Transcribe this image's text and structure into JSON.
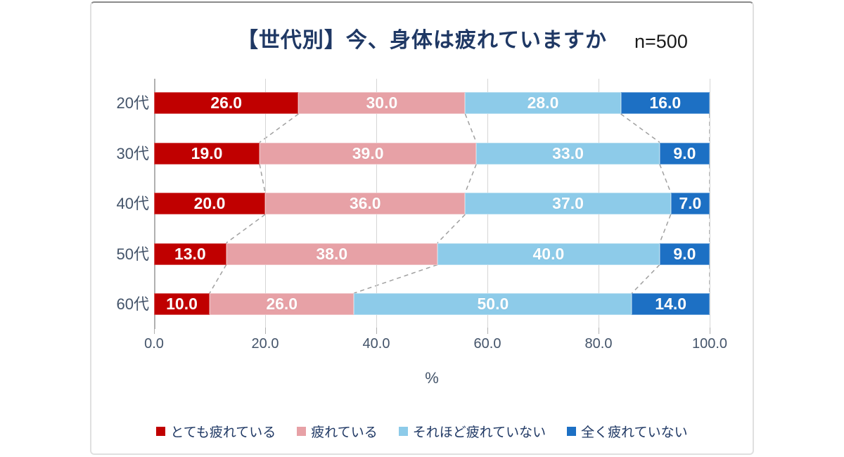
{
  "card": {
    "n_label": "n=500"
  },
  "chart_data": {
    "type": "bar",
    "subtype": "horizontal_stacked",
    "title": "【世代別】今、身体は疲れていますか",
    "sample_size": "n=500",
    "categories": [
      "20代",
      "30代",
      "40代",
      "50代",
      "60代"
    ],
    "series": [
      {
        "name": "とても疲れている",
        "color": "#c00000",
        "values": [
          26.0,
          19.0,
          20.0,
          13.0,
          10.0
        ]
      },
      {
        "name": "疲れている",
        "color": "#e7a1a6",
        "values": [
          30.0,
          39.0,
          36.0,
          38.0,
          26.0
        ]
      },
      {
        "name": "それほど疲れていない",
        "color": "#8dcbe9",
        "values": [
          28.0,
          33.0,
          37.0,
          40.0,
          50.0
        ]
      },
      {
        "name": "全く疲れていない",
        "color": "#1d70c4",
        "values": [
          16.0,
          9.0,
          7.0,
          9.0,
          14.0
        ]
      }
    ],
    "value_labels_format": "#.0",
    "xlabel": "%",
    "xlim": [
      0,
      100
    ],
    "x_ticks": [
      "0.0",
      "20.0",
      "40.0",
      "60.0",
      "80.0",
      "100.0"
    ],
    "x_tick_values": [
      0,
      20,
      40,
      60,
      80,
      100
    ],
    "grid": true,
    "connector_lines": true,
    "legend_position": "bottom"
  },
  "style_colors": {
    "title": "#1f3864",
    "axis_text": "#44546a",
    "legend_text": "#1f3864",
    "gridline": "#d6d6d6",
    "connector": "#a0a0a0",
    "bar_label": "#ffffff"
  }
}
